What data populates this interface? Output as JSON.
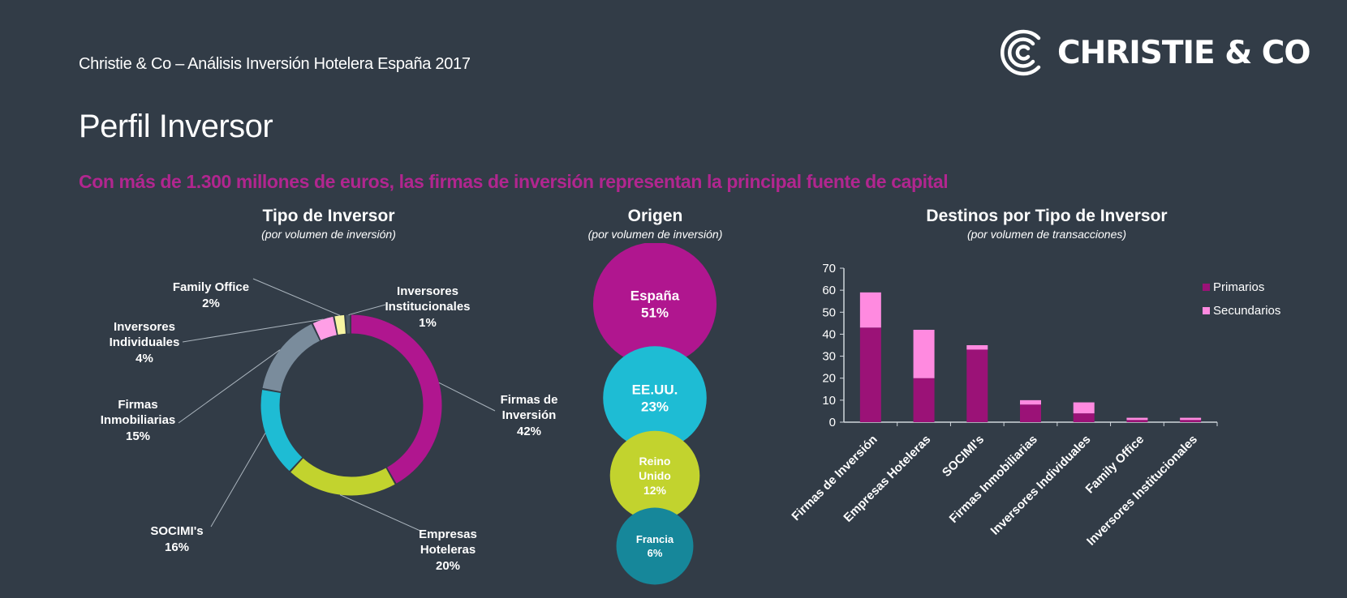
{
  "header": {
    "subtitle": "Christie & Co – Análisis Inversión Hotelera España 2017",
    "logo_text": "CHRISTIE & CO"
  },
  "page_title": "Perfil Inversor",
  "headline": "Con más de 1.300 millones de euros, las firmas de inversión representan la principal fuente de capital",
  "colors": {
    "background": "#323c47",
    "magenta": "#b0168f",
    "lime": "#c2d32e",
    "cyan": "#1ebcd4",
    "teal": "#16879a",
    "grey": "#7a8c9c",
    "pink": "#ff8ae0",
    "yellow": "#f7f5a2",
    "dark_magenta": "#9b1277",
    "headline": "#b1268f"
  },
  "chart_data": [
    {
      "type": "pie",
      "variant": "donut",
      "title": "Tipo de Inversor",
      "subtitle": "(por volumen de inversión)",
      "slices": [
        {
          "label": "Firmas de Inversión",
          "value": 42,
          "value_label": "42%",
          "color": "#b0168f"
        },
        {
          "label": "Empresas Hoteleras",
          "value": 20,
          "value_label": "20%",
          "color": "#c2d32e"
        },
        {
          "label": "SOCIMI's",
          "value": 16,
          "value_label": "16%",
          "color": "#1ebcd4"
        },
        {
          "label": "Firmas Inmobiliarias",
          "value": 15,
          "value_label": "15%",
          "color": "#7a8c9c"
        },
        {
          "label": "Inversores Individuales",
          "value": 4,
          "value_label": "4%",
          "color": "#ff9fe6"
        },
        {
          "label": "Family Office",
          "value": 2,
          "value_label": "2%",
          "color": "#f7f5a2"
        },
        {
          "label": "Inversores Institucionales",
          "value": 1,
          "value_label": "1%",
          "color": "#4b5866"
        }
      ]
    },
    {
      "type": "bubble",
      "title": "Origen",
      "subtitle": "(por volumen de inversión)",
      "items": [
        {
          "label": "España",
          "value": 51,
          "value_label": "51%",
          "color": "#b0168f"
        },
        {
          "label": "EE.UU.",
          "value": 23,
          "value_label": "23%",
          "color": "#1ebcd4"
        },
        {
          "label": "Reino Unido",
          "value": 12,
          "value_label": "12%",
          "color": "#c2d32e"
        },
        {
          "label": "Francia",
          "value": 6,
          "value_label": "6%",
          "color": "#16879a"
        }
      ]
    },
    {
      "type": "bar",
      "stacked": true,
      "title": "Destinos por Tipo de Inversor",
      "subtitle": "(por volumen de transacciones)",
      "categories": [
        "Firmas de Inversión",
        "Empresas Hoteleras",
        "SOCIMI's",
        "Firmas Inmobiliarias",
        "Inversores Individuales",
        "Family Office",
        "Inversores Institucionales"
      ],
      "series": [
        {
          "name": "Primarios",
          "color": "#9b1277",
          "values": [
            43,
            20,
            33,
            8,
            4,
            1,
            1
          ]
        },
        {
          "name": "Secundarios",
          "color": "#ff8ae0",
          "values": [
            16,
            22,
            2,
            2,
            5,
            1,
            1
          ]
        }
      ],
      "ylim": [
        0,
        70
      ],
      "yticks": [
        0,
        10,
        20,
        30,
        40,
        50,
        60,
        70
      ],
      "legend_position": "top-right",
      "grid": false
    }
  ]
}
